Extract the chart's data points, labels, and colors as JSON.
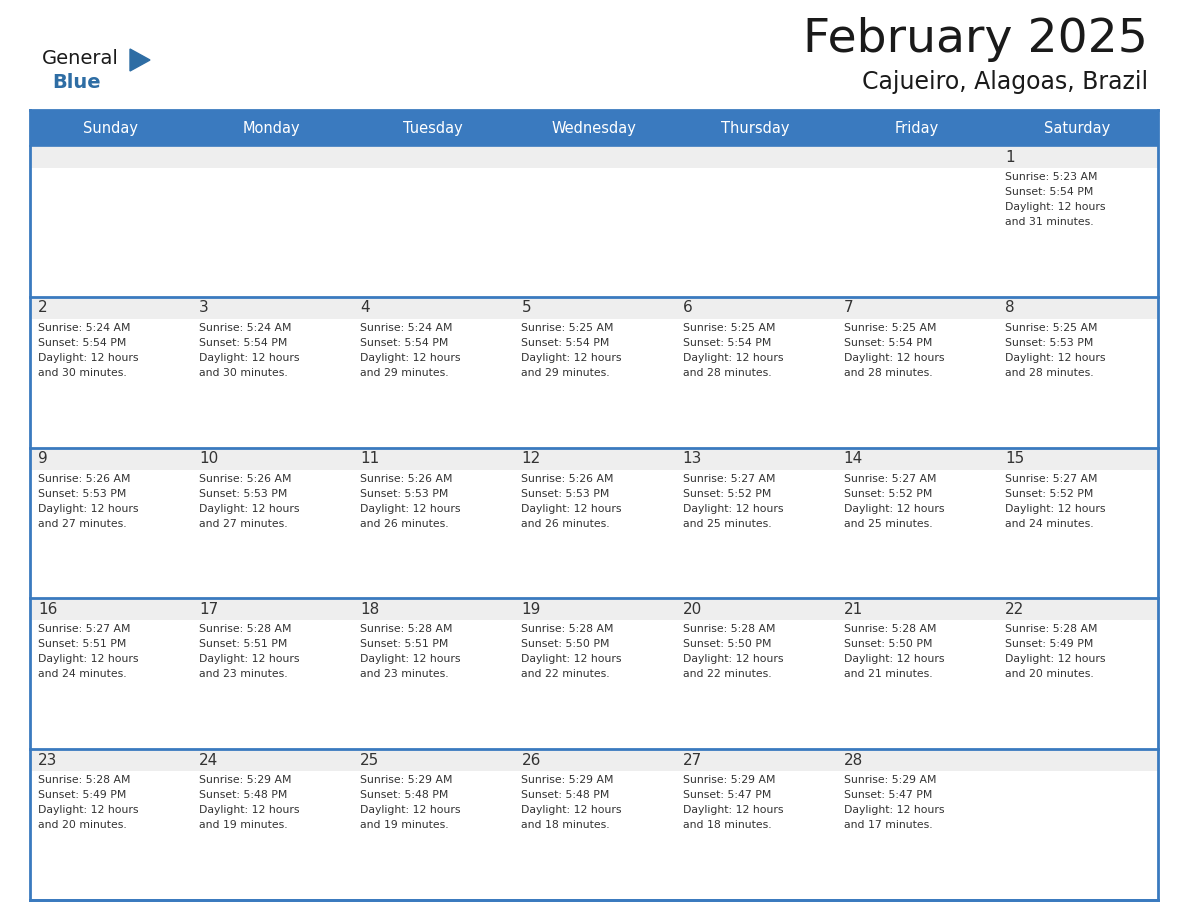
{
  "title": "February 2025",
  "subtitle": "Cajueiro, Alagoas, Brazil",
  "days_of_week": [
    "Sunday",
    "Monday",
    "Tuesday",
    "Wednesday",
    "Thursday",
    "Friday",
    "Saturday"
  ],
  "header_bg": "#3a7abf",
  "header_text": "#FFFFFF",
  "cell_bg_gray": "#eeeeee",
  "cell_bg_white": "#FFFFFF",
  "border_color": "#3a7abf",
  "text_color": "#333333",
  "day_num_color": "#333333",
  "title_color": "#1a1a1a",
  "logo_general_color": "#1a1a1a",
  "logo_blue_color": "#2E6DA4",
  "calendar": [
    [
      {
        "day": null,
        "info": null
      },
      {
        "day": null,
        "info": null
      },
      {
        "day": null,
        "info": null
      },
      {
        "day": null,
        "info": null
      },
      {
        "day": null,
        "info": null
      },
      {
        "day": null,
        "info": null
      },
      {
        "day": 1,
        "info": "Sunrise: 5:23 AM\nSunset: 5:54 PM\nDaylight: 12 hours\nand 31 minutes."
      }
    ],
    [
      {
        "day": 2,
        "info": "Sunrise: 5:24 AM\nSunset: 5:54 PM\nDaylight: 12 hours\nand 30 minutes."
      },
      {
        "day": 3,
        "info": "Sunrise: 5:24 AM\nSunset: 5:54 PM\nDaylight: 12 hours\nand 30 minutes."
      },
      {
        "day": 4,
        "info": "Sunrise: 5:24 AM\nSunset: 5:54 PM\nDaylight: 12 hours\nand 29 minutes."
      },
      {
        "day": 5,
        "info": "Sunrise: 5:25 AM\nSunset: 5:54 PM\nDaylight: 12 hours\nand 29 minutes."
      },
      {
        "day": 6,
        "info": "Sunrise: 5:25 AM\nSunset: 5:54 PM\nDaylight: 12 hours\nand 28 minutes."
      },
      {
        "day": 7,
        "info": "Sunrise: 5:25 AM\nSunset: 5:54 PM\nDaylight: 12 hours\nand 28 minutes."
      },
      {
        "day": 8,
        "info": "Sunrise: 5:25 AM\nSunset: 5:53 PM\nDaylight: 12 hours\nand 28 minutes."
      }
    ],
    [
      {
        "day": 9,
        "info": "Sunrise: 5:26 AM\nSunset: 5:53 PM\nDaylight: 12 hours\nand 27 minutes."
      },
      {
        "day": 10,
        "info": "Sunrise: 5:26 AM\nSunset: 5:53 PM\nDaylight: 12 hours\nand 27 minutes."
      },
      {
        "day": 11,
        "info": "Sunrise: 5:26 AM\nSunset: 5:53 PM\nDaylight: 12 hours\nand 26 minutes."
      },
      {
        "day": 12,
        "info": "Sunrise: 5:26 AM\nSunset: 5:53 PM\nDaylight: 12 hours\nand 26 minutes."
      },
      {
        "day": 13,
        "info": "Sunrise: 5:27 AM\nSunset: 5:52 PM\nDaylight: 12 hours\nand 25 minutes."
      },
      {
        "day": 14,
        "info": "Sunrise: 5:27 AM\nSunset: 5:52 PM\nDaylight: 12 hours\nand 25 minutes."
      },
      {
        "day": 15,
        "info": "Sunrise: 5:27 AM\nSunset: 5:52 PM\nDaylight: 12 hours\nand 24 minutes."
      }
    ],
    [
      {
        "day": 16,
        "info": "Sunrise: 5:27 AM\nSunset: 5:51 PM\nDaylight: 12 hours\nand 24 minutes."
      },
      {
        "day": 17,
        "info": "Sunrise: 5:28 AM\nSunset: 5:51 PM\nDaylight: 12 hours\nand 23 minutes."
      },
      {
        "day": 18,
        "info": "Sunrise: 5:28 AM\nSunset: 5:51 PM\nDaylight: 12 hours\nand 23 minutes."
      },
      {
        "day": 19,
        "info": "Sunrise: 5:28 AM\nSunset: 5:50 PM\nDaylight: 12 hours\nand 22 minutes."
      },
      {
        "day": 20,
        "info": "Sunrise: 5:28 AM\nSunset: 5:50 PM\nDaylight: 12 hours\nand 22 minutes."
      },
      {
        "day": 21,
        "info": "Sunrise: 5:28 AM\nSunset: 5:50 PM\nDaylight: 12 hours\nand 21 minutes."
      },
      {
        "day": 22,
        "info": "Sunrise: 5:28 AM\nSunset: 5:49 PM\nDaylight: 12 hours\nand 20 minutes."
      }
    ],
    [
      {
        "day": 23,
        "info": "Sunrise: 5:28 AM\nSunset: 5:49 PM\nDaylight: 12 hours\nand 20 minutes."
      },
      {
        "day": 24,
        "info": "Sunrise: 5:29 AM\nSunset: 5:48 PM\nDaylight: 12 hours\nand 19 minutes."
      },
      {
        "day": 25,
        "info": "Sunrise: 5:29 AM\nSunset: 5:48 PM\nDaylight: 12 hours\nand 19 minutes."
      },
      {
        "day": 26,
        "info": "Sunrise: 5:29 AM\nSunset: 5:48 PM\nDaylight: 12 hours\nand 18 minutes."
      },
      {
        "day": 27,
        "info": "Sunrise: 5:29 AM\nSunset: 5:47 PM\nDaylight: 12 hours\nand 18 minutes."
      },
      {
        "day": 28,
        "info": "Sunrise: 5:29 AM\nSunset: 5:47 PM\nDaylight: 12 hours\nand 17 minutes."
      },
      {
        "day": null,
        "info": null
      }
    ]
  ],
  "fig_width": 11.88,
  "fig_height": 9.18,
  "dpi": 100
}
